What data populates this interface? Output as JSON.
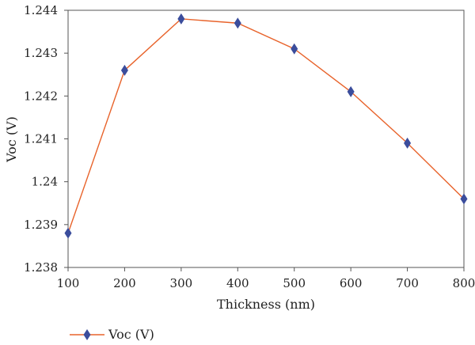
{
  "chart_data": {
    "type": "line",
    "xlabel": "Thickness (nm)",
    "ylabel": "Voc (V)",
    "x": [
      100,
      200,
      300,
      400,
      500,
      600,
      700,
      800
    ],
    "series": [
      {
        "name": "Voc (V)",
        "values": [
          1.2388,
          1.2426,
          1.2438,
          1.2437,
          1.2431,
          1.2421,
          1.2409,
          1.2396
        ]
      }
    ],
    "xlim": [
      100,
      800
    ],
    "ylim": [
      1.238,
      1.244
    ],
    "xticks": [
      100,
      200,
      300,
      400,
      500,
      600,
      700,
      800
    ],
    "xtick_labels": [
      "100",
      "200",
      "300",
      "400",
      "500",
      "600",
      "700",
      "800"
    ],
    "yticks": [
      1.238,
      1.239,
      1.24,
      1.241,
      1.242,
      1.243,
      1.244
    ],
    "ytick_labels": [
      "1.238",
      "1.239",
      "1.24",
      "1.241",
      "1.242",
      "1.243",
      "1.244"
    ],
    "grid": false,
    "legend": "bottom-left",
    "colors": {
      "line": "#e8632b",
      "marker": "#3b4d9c",
      "axis": "#555555"
    }
  }
}
